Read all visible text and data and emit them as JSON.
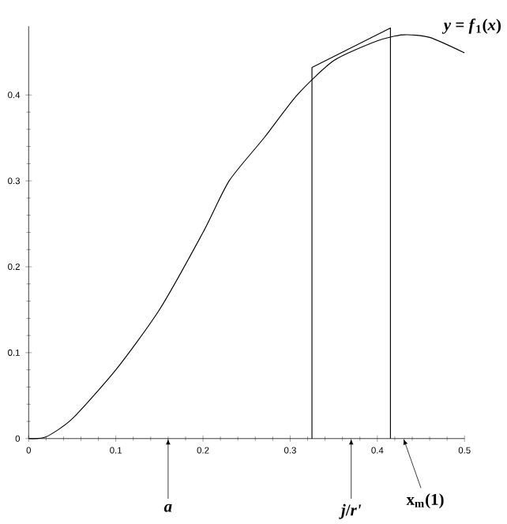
{
  "chart_data": {
    "type": "line",
    "xlim": [
      0,
      0.5
    ],
    "ylim": [
      0,
      0.48
    ],
    "xticks": [
      0,
      0.1,
      0.2,
      0.3,
      0.4,
      0.5
    ],
    "yticks": [
      0,
      0.1,
      0.2,
      0.3,
      0.4
    ],
    "series": [
      {
        "color": "#000000",
        "x": [
          0,
          0.02,
          0.05,
          0.1,
          0.15,
          0.2,
          0.23,
          0.27,
          0.308,
          0.35,
          0.4,
          0.43,
          0.46,
          0.5
        ],
        "values": [
          0,
          0.002,
          0.023,
          0.08,
          0.15,
          0.24,
          0.3,
          0.35,
          0.4,
          0.44,
          0.463,
          0.47,
          0.467,
          0.449
        ]
      },
      {
        "color": "#000000",
        "x": [
          0.325,
          0.325,
          0.415,
          0.415
        ],
        "values": [
          0,
          0.432,
          0.478,
          0
        ]
      }
    ],
    "annotations": [
      {
        "text": "*y* = *f*$_{1}$(*x*)",
        "x": 0.47,
        "y": 0.465
      },
      {
        "text": "*a*",
        "x": 0.16,
        "y": 0
      },
      {
        "text": "*j*/*r'*",
        "x": 0.37,
        "y": 0
      },
      "x$_{m}$(1)"
    ],
    "line_style": "solid",
    "grid": false
  }
}
